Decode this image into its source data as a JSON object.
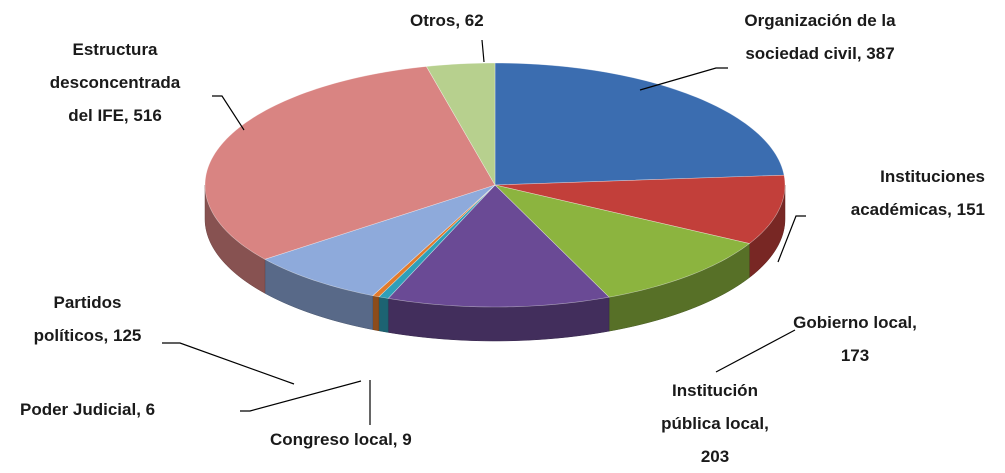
{
  "chart_data": {
    "type": "pie3d",
    "categories": [
      "Organización de la sociedad civil,",
      "Instituciones académicas,",
      "Gobierno local,",
      "Institución pública local,",
      "Congreso local,",
      "Poder Judicial,",
      "Partidos políticos,",
      "Estructura desconcentrada del IFE,",
      "Otros,"
    ],
    "values": [
      387,
      151,
      173,
      203,
      9,
      6,
      125,
      516,
      62
    ],
    "colors": [
      "#3b6db0",
      "#c23f3a",
      "#8cb43f",
      "#6a4a95",
      "#2f9fb8",
      "#e27a2b",
      "#8eaadb",
      "#d98482",
      "#b7d08e"
    ]
  }
}
